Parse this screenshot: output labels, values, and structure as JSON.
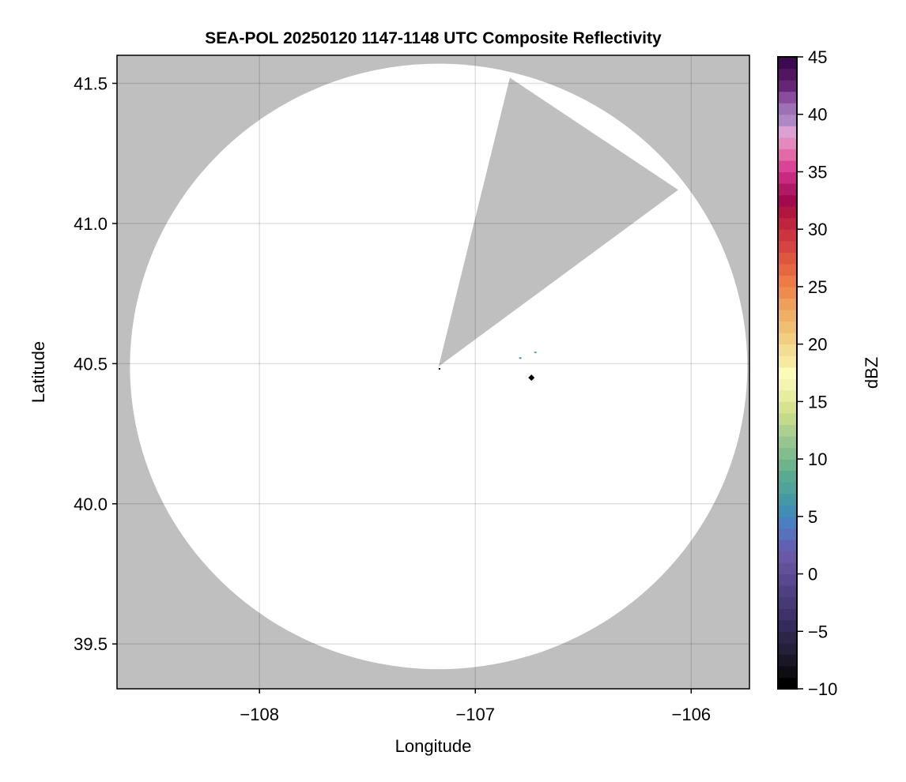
{
  "chart_data": {
    "type": "heatmap",
    "title": "SEA-POL 20250120 1147-1148 UTC Composite Reflectivity",
    "xlabel": "Longitude",
    "ylabel": "Latitude",
    "xlim": [
      -108.66,
      -105.73
    ],
    "ylim": [
      39.34,
      41.6
    ],
    "xticks": [
      -108,
      -107,
      -106
    ],
    "xtick_labels": [
      "−108",
      "−107",
      "−106"
    ],
    "yticks": [
      39.5,
      40.0,
      40.5,
      41.0,
      41.5
    ],
    "ytick_labels": [
      "39.5",
      "40.0",
      "40.5",
      "41.0",
      "41.5"
    ],
    "grid": true,
    "background_color": "#bfbfbf",
    "coverage_color": "#ffffff",
    "radar_center": {
      "lon": -107.17,
      "lat": 40.49
    },
    "coverage_radius": {
      "lon_deg": 1.43,
      "lat_deg": 1.08
    },
    "blocked_sector": [
      {
        "lon": -106.84,
        "lat": 41.52
      },
      {
        "lon": -106.06,
        "lat": 41.12
      }
    ],
    "marker": {
      "lon": -106.74,
      "lat": 40.45,
      "shape": "diamond",
      "color": "#000000"
    },
    "echoes": [
      {
        "lon": -106.79,
        "lat": 40.52,
        "dbz": 5
      },
      {
        "lon": -106.72,
        "lat": 40.54,
        "dbz": 8
      }
    ],
    "colorbar": {
      "label": "dBZ",
      "range": [
        -10,
        45
      ],
      "ticks": [
        -10,
        -5,
        0,
        5,
        10,
        15,
        20,
        25,
        30,
        35,
        40,
        45
      ],
      "tick_labels": [
        "−10",
        "−5",
        "0",
        "5",
        "10",
        "15",
        "20",
        "25",
        "30",
        "35",
        "40",
        "45"
      ],
      "colors_low_to_high": [
        "#000000",
        "#0e0d14",
        "#1a1625",
        "#241f3a",
        "#2c2548",
        "#342b5a",
        "#3e3268",
        "#463a74",
        "#4e4080",
        "#574890",
        "#625099",
        "#6858a6",
        "#6260b0",
        "#5772b8",
        "#4a80c2",
        "#3f8fb4",
        "#449aa4",
        "#4ea39a",
        "#5aaa92",
        "#6cb38e",
        "#82bd8e",
        "#96c690",
        "#acd08e",
        "#c3da8a",
        "#d6e490",
        "#e6eda0",
        "#f5f4b0",
        "#fafbb8",
        "#f6eaa0",
        "#f2de90",
        "#f0d080",
        "#f0c072",
        "#efb066",
        "#eea05a",
        "#ee8b4e",
        "#ec7b45",
        "#e76840",
        "#e05740",
        "#d64442",
        "#cc3440",
        "#c02540",
        "#b0163f",
        "#a3094d",
        "#b01a65",
        "#c72a7e",
        "#d94497",
        "#e36aa8",
        "#e588bd",
        "#dca0d2",
        "#ae88c2",
        "#9e70b5",
        "#8a4d9d",
        "#652675",
        "#521660",
        "#3d0a4f"
      ]
    }
  }
}
